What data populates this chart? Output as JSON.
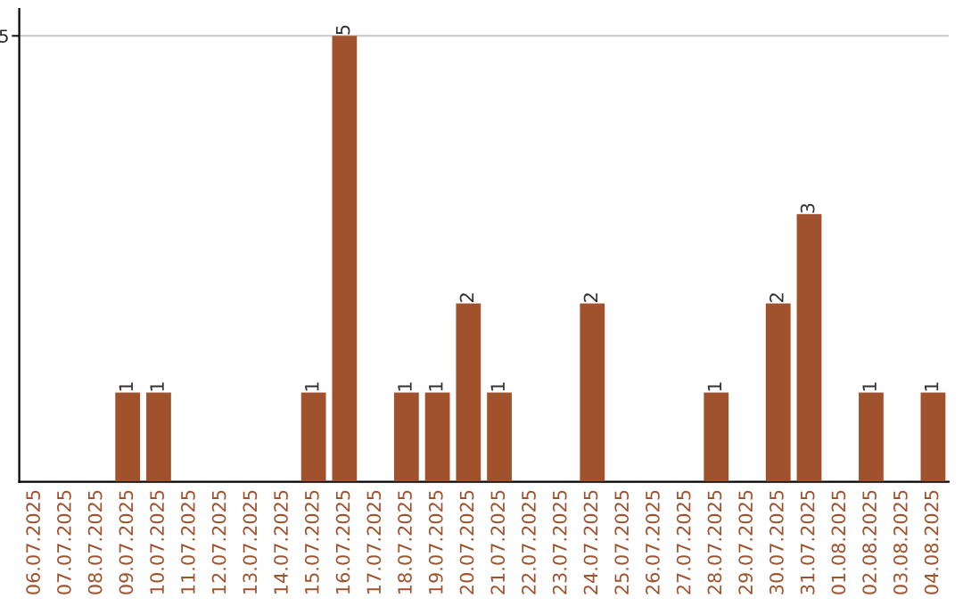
{
  "chart_data": {
    "type": "bar",
    "categories": [
      "06.07.2025",
      "07.07.2025",
      "08.07.2025",
      "09.07.2025",
      "10.07.2025",
      "11.07.2025",
      "12.07.2025",
      "13.07.2025",
      "14.07.2025",
      "15.07.2025",
      "16.07.2025",
      "17.07.2025",
      "18.07.2025",
      "19.07.2025",
      "20.07.2025",
      "21.07.2025",
      "22.07.2025",
      "23.07.2025",
      "24.07.2025",
      "25.07.2025",
      "26.07.2025",
      "27.07.2025",
      "28.07.2025",
      "29.07.2025",
      "30.07.2025",
      "31.07.2025",
      "01.08.2025",
      "02.08.2025",
      "03.08.2025",
      "04.08.2025"
    ],
    "values": [
      0,
      0,
      0,
      1,
      1,
      0,
      0,
      0,
      0,
      1,
      5,
      0,
      1,
      1,
      2,
      1,
      0,
      0,
      2,
      0,
      0,
      0,
      1,
      0,
      2,
      3,
      0,
      1,
      0,
      1
    ],
    "value_labels": [
      null,
      null,
      null,
      "1",
      "1",
      null,
      null,
      null,
      null,
      "1",
      "5",
      null,
      "1",
      "1",
      "2",
      "1",
      null,
      null,
      "2",
      null,
      null,
      null,
      "1",
      null,
      "2",
      "3",
      null,
      "1",
      null,
      "1"
    ],
    "color": "#a0522d",
    "ylim": [
      0,
      5.3
    ],
    "yticks": [
      5
    ],
    "grid": "y"
  }
}
